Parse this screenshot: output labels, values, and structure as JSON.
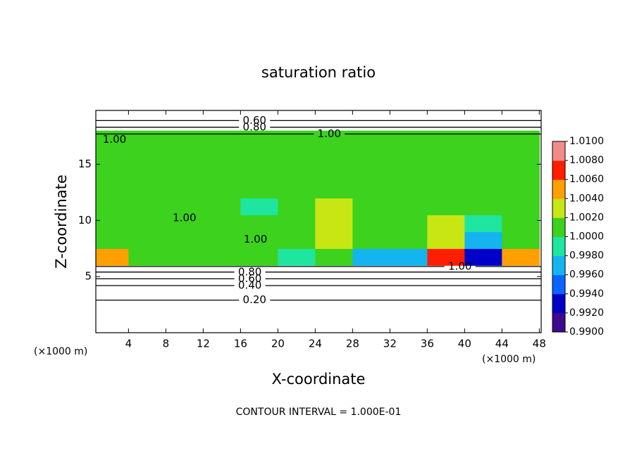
{
  "chart_data": {
    "type": "contour",
    "title": "saturation ratio",
    "xlabel": "X-coordinate",
    "ylabel": "Z-coordinate",
    "x_unit": "(×1000 m)",
    "annotation": "CONTOUR INTERVAL = 1.000E-01",
    "xlim": [
      0.5,
      48.2
    ],
    "ylim": [
      0,
      19.8
    ],
    "xticks": [
      4,
      8,
      12,
      16,
      20,
      24,
      28,
      32,
      36,
      40,
      44,
      48
    ],
    "yticks": [
      5,
      10,
      15
    ],
    "field": {
      "x": [
        2,
        6,
        10,
        14,
        18,
        22,
        26,
        30,
        34,
        38,
        42,
        46
      ],
      "y": [
        6.75,
        8.25,
        9.75,
        11.25,
        12.75,
        14.25,
        15.75,
        17.25
      ],
      "z": [
        [
          1.005,
          1.001,
          1.0006,
          1.001,
          1.0006,
          0.999,
          1.0006,
          0.997,
          0.996,
          1.007,
          0.993,
          1.004
        ],
        [
          1.001,
          1.0006,
          1.0006,
          1.0006,
          1.0006,
          1.001,
          1.002,
          1.0006,
          1.0006,
          1.003,
          0.997,
          1.0006
        ],
        [
          1.0006,
          1.0006,
          1.0006,
          1.0006,
          1.0006,
          1.001,
          1.003,
          1.0006,
          1.001,
          1.002,
          0.999,
          1.0006
        ],
        [
          1.0006,
          1.0006,
          1.0006,
          1.0006,
          0.998,
          1.001,
          1.002,
          1.0006,
          1.001,
          1.001,
          1.0006,
          1.0006
        ],
        [
          1.0006,
          1.0006,
          1.0006,
          1.0006,
          1.0006,
          1.001,
          1.001,
          1.0006,
          1.001,
          1.001,
          1.0006,
          1.0006
        ],
        [
          1.0006,
          1.0006,
          1.0006,
          1.0006,
          1.0006,
          1.0006,
          1.001,
          1.0006,
          1.0006,
          1.001,
          1.0006,
          1.0006
        ],
        [
          1.0006,
          1.0006,
          1.0006,
          1.0006,
          1.0006,
          1.0006,
          1.0006,
          1.0006,
          1.0006,
          1.0006,
          1.0006,
          1.0006
        ],
        [
          1.0006,
          1.0006,
          1.0006,
          1.0006,
          1.0006,
          1.0006,
          1.0006,
          1.0006,
          1.0006,
          1.0006,
          1.0006,
          1.0006
        ]
      ]
    },
    "contours": [
      {
        "value": 0.2,
        "label": "0.20",
        "z": 2.9,
        "x": 17.5
      },
      {
        "value": 0.4,
        "label": "0.40",
        "z": 4.2,
        "x": 17.0
      },
      {
        "value": 0.6,
        "label": "0.60",
        "z": 4.8,
        "x": 17.0
      },
      {
        "value": 0.8,
        "label": "0.80",
        "z": 5.4,
        "x": 17.0
      },
      {
        "value": 1,
        "label": "1.00",
        "z": 5.9,
        "x": 39.5
      },
      {
        "value": 1,
        "label": "1.00",
        "z": 17.7,
        "x": 25.5
      },
      {
        "value": 0.8,
        "label": "0.80",
        "z": 18.3,
        "x": 17.5
      },
      {
        "value": 0.6,
        "label": "0.60",
        "z": 18.9,
        "x": 17.5
      }
    ],
    "contour_text": [
      {
        "label": "1.00",
        "x": 2.5,
        "z": 17.2
      },
      {
        "label": "1.00",
        "x": 10.0,
        "z": 10.2
      },
      {
        "label": "1.00",
        "x": 17.6,
        "z": 8.3
      }
    ],
    "colorbar": {
      "ticks": [
        {
          "value": 0.99,
          "label": "0.9900"
        },
        {
          "value": 0.992,
          "label": "0.9920"
        },
        {
          "value": 0.994,
          "label": "0.9940"
        },
        {
          "value": 0.996,
          "label": "0.9960"
        },
        {
          "value": 0.998,
          "label": "0.9980"
        },
        {
          "value": 1.0,
          "label": "1.0000"
        },
        {
          "value": 1.002,
          "label": "1.0020"
        },
        {
          "value": 1.004,
          "label": "1.0040"
        },
        {
          "value": 1.006,
          "label": "1.0060"
        },
        {
          "value": 1.008,
          "label": "1.0080"
        },
        {
          "value": 1.01,
          "label": "1.0100"
        }
      ],
      "colors": [
        "#3c0a8c",
        "#0000c8",
        "#0a64ff",
        "#14b4f0",
        "#1ee6a0",
        "#3cd21e",
        "#c8e614",
        "#ffa000",
        "#ff1e00",
        "#f08c8c"
      ]
    }
  }
}
